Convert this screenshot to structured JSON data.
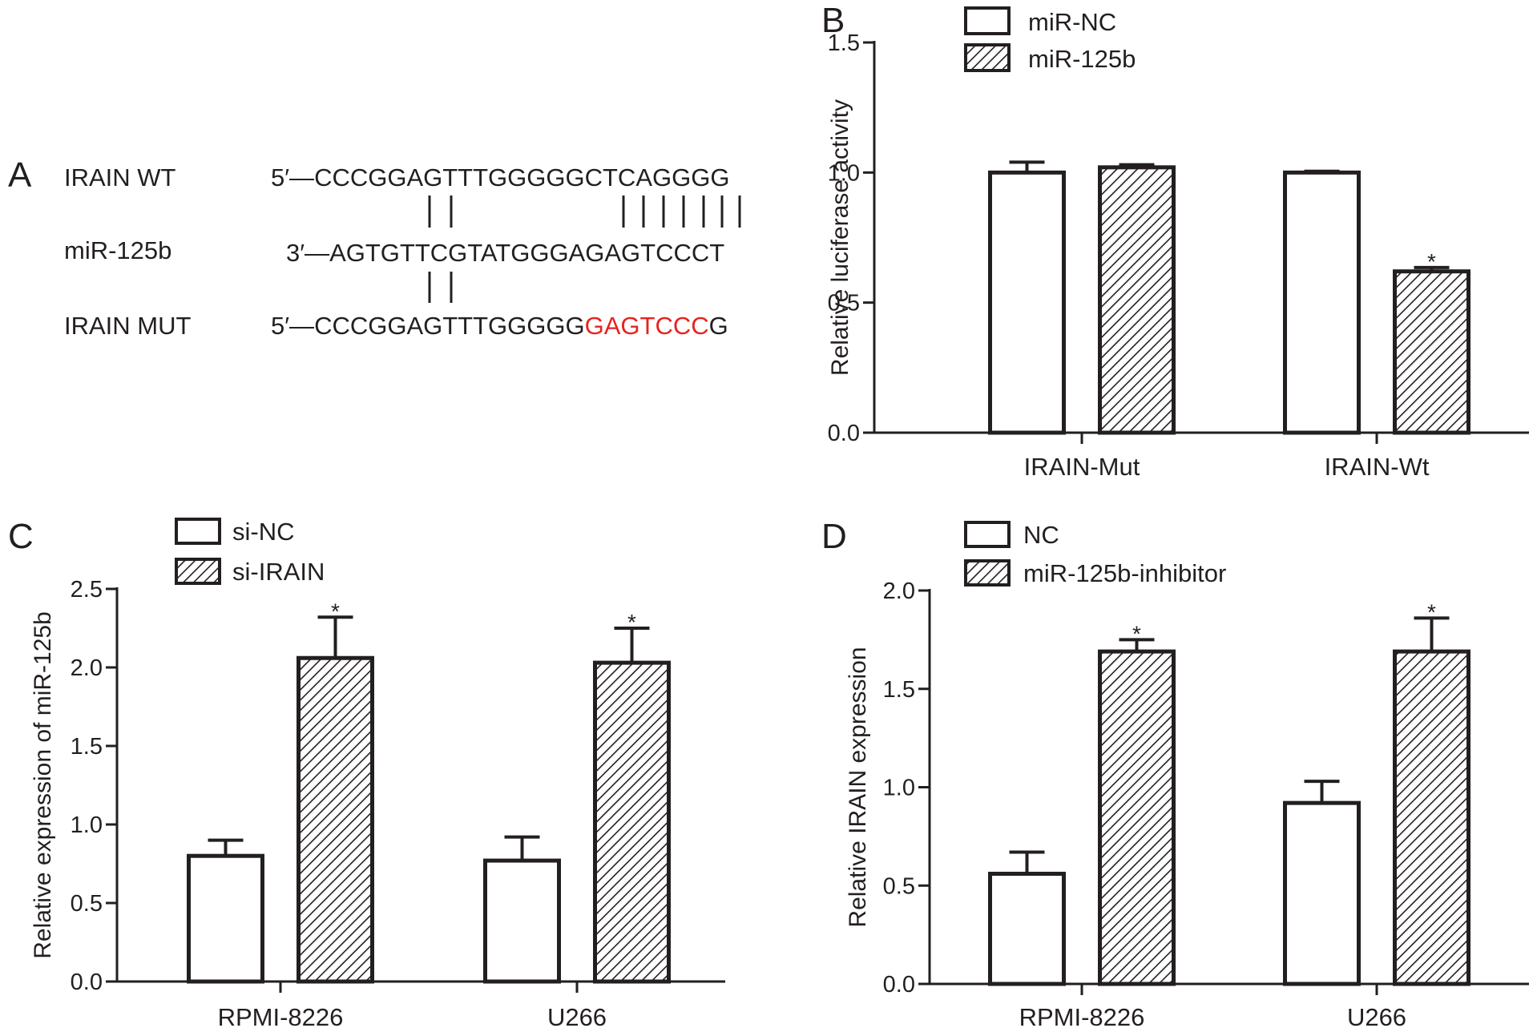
{
  "panel_a": {
    "letter": "A",
    "rows": [
      {
        "label": "IRAIN   WT",
        "prefix": "5′—",
        "sequence": "CCCGGAGTTTGGGGGCTCAGGGG",
        "highlight": ""
      },
      {
        "label": "miR-125b",
        "prefix": "3′—",
        "sequence": "AGTGTTCGTATGGGAGAGTCCCT",
        "highlight": ""
      },
      {
        "label": "IRAIN MUT",
        "prefix": "5′—",
        "sequence": "CCCGGAGTTTGGGGG",
        "highlight": "GAGTCCC",
        "suffix": "G"
      }
    ],
    "colors": {
      "highlight": "#e8231f"
    }
  },
  "chart_data": [
    {
      "panel": "B",
      "type": "bar",
      "ylabel": "Relative luciferase activity",
      "xlabel": "",
      "ylim": [
        0,
        1.5
      ],
      "yticks": [
        "0.0",
        "0.5",
        "1.0",
        "1.5"
      ],
      "categories": [
        "IRAIN-Mut",
        "IRAIN-Wt"
      ],
      "series": [
        {
          "name": "miR-NC",
          "pattern": "solid",
          "values": [
            1.0,
            1.0
          ],
          "errors": [
            0.04,
            0.005
          ]
        },
        {
          "name": "miR-125b",
          "pattern": "hatched",
          "values": [
            1.02,
            0.62
          ],
          "errors": [
            0.01,
            0.015
          ]
        }
      ],
      "annotations": [
        {
          "category": 1,
          "series": 1,
          "text": "*"
        }
      ],
      "legend": "top-left"
    },
    {
      "panel": "C",
      "type": "bar",
      "ylabel": "Relative expression of miR-125b",
      "xlabel": "",
      "ylim": [
        0,
        2.5
      ],
      "yticks": [
        "0.0",
        "0.5",
        "1.0",
        "1.5",
        "2.0",
        "2.5"
      ],
      "categories": [
        "RPMI-8226",
        "U266"
      ],
      "series": [
        {
          "name": "si-NC",
          "pattern": "solid",
          "values": [
            0.8,
            0.77
          ],
          "errors": [
            0.1,
            0.15
          ]
        },
        {
          "name": "si-IRAIN",
          "pattern": "hatched",
          "values": [
            2.06,
            2.03
          ],
          "errors": [
            0.26,
            0.22
          ]
        }
      ],
      "annotations": [
        {
          "category": 0,
          "series": 1,
          "text": "*"
        },
        {
          "category": 1,
          "series": 1,
          "text": "*"
        }
      ],
      "legend": "top-left"
    },
    {
      "panel": "D",
      "type": "bar",
      "ylabel": "Relative IRAIN expression",
      "xlabel": "",
      "ylim": [
        0,
        2.0
      ],
      "yticks": [
        "0.0",
        "0.5",
        "1.0",
        "1.5",
        "2.0"
      ],
      "categories": [
        "RPMI-8226",
        "U266"
      ],
      "series": [
        {
          "name": "NC",
          "pattern": "solid",
          "values": [
            0.56,
            0.92
          ],
          "errors": [
            0.11,
            0.11
          ]
        },
        {
          "name": "miR-125b-inhibitor",
          "pattern": "hatched",
          "values": [
            1.69,
            1.69
          ],
          "errors": [
            0.06,
            0.17
          ]
        }
      ],
      "annotations": [
        {
          "category": 0,
          "series": 1,
          "text": "*"
        },
        {
          "category": 1,
          "series": 1,
          "text": "*"
        }
      ],
      "legend": "top-left"
    }
  ],
  "colors": {
    "ink": "#231f20",
    "background": "#ffffff"
  }
}
